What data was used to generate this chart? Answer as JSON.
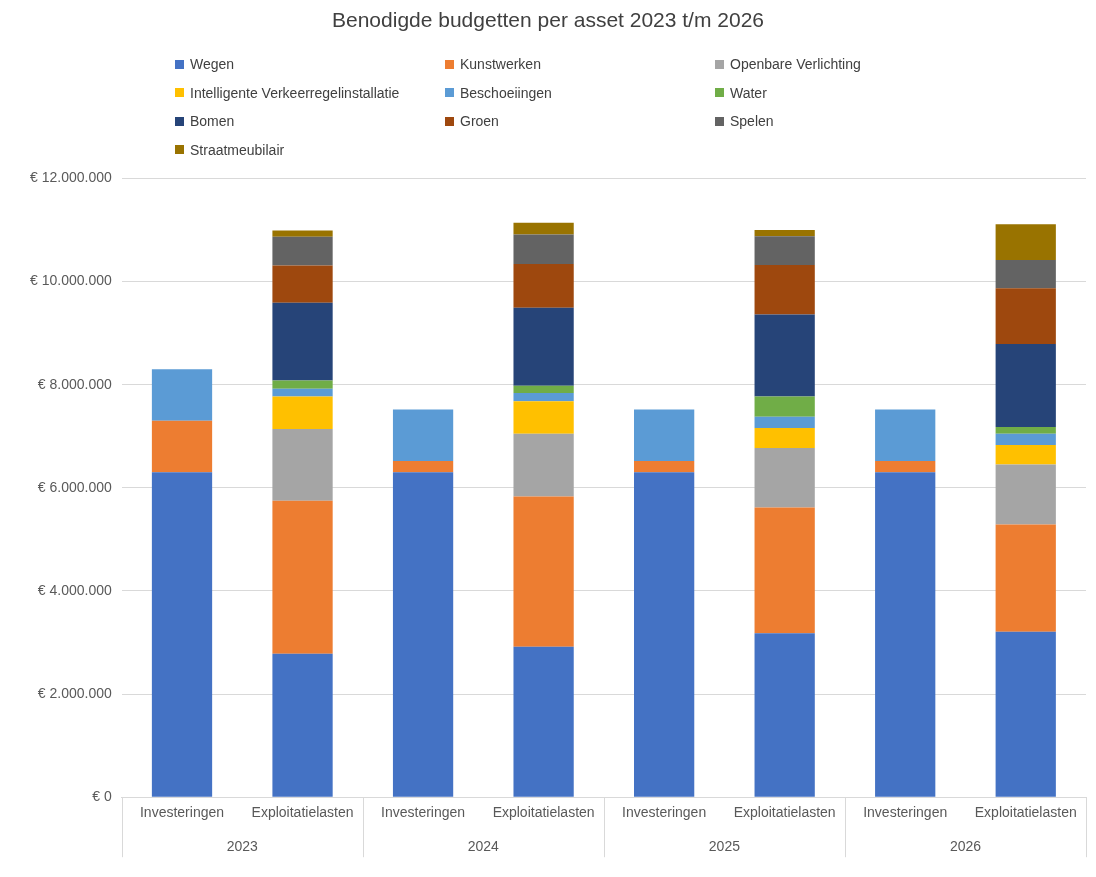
{
  "chart_data": {
    "type": "bar",
    "title": "Benodigde budgetten per asset 2023 t/m 2026",
    "stacked": true,
    "grid": "y",
    "legend": "top",
    "categories": [
      "Investeringen",
      "Exploitatielasten",
      "Investeringen",
      "Exploitatielasten",
      "Investeringen",
      "Exploitatielasten",
      "Investeringen",
      "Exploitatielasten"
    ],
    "annotations": [
      "2023",
      "2024",
      "2025",
      "2026"
    ],
    "ylim": [
      0,
      12000000
    ],
    "yticks": [
      {
        "value": 0,
        "label": "€ 0"
      },
      {
        "value": 2000000,
        "label": "€ 2.000.000"
      },
      {
        "value": 4000000,
        "label": "€ 4.000.000"
      },
      {
        "value": 6000000,
        "label": "€ 6.000.000"
      },
      {
        "value": 8000000,
        "label": "€ 8.000.000"
      },
      {
        "value": 10000000,
        "label": "€ 10.000.000"
      },
      {
        "value": 12000000,
        "label": "€ 12.000.000"
      }
    ],
    "series": [
      {
        "name": "Wegen",
        "color": "#4472c4",
        "values": [
          6300000,
          2780000,
          6300000,
          2920000,
          6300000,
          3180000,
          6300000,
          3210000
        ]
      },
      {
        "name": "Kunstwerken",
        "color": "#ed7d31",
        "values": [
          1000000,
          2970000,
          220000,
          2910000,
          220000,
          2440000,
          220000,
          2080000
        ]
      },
      {
        "name": "Openbare Verlichting",
        "color": "#a5a5a5",
        "values": [
          null,
          1390000,
          null,
          1220000,
          null,
          1150000,
          null,
          1160000
        ]
      },
      {
        "name": "Intelligente Verkeerregelinstallatie",
        "color": "#ffc000",
        "values": [
          null,
          630000,
          null,
          630000,
          null,
          390000,
          null,
          380000
        ]
      },
      {
        "name": "Beschoeiingen",
        "color": "#5b9bd5",
        "values": [
          1000000,
          150000,
          1000000,
          160000,
          1000000,
          220000,
          1000000,
          220000
        ]
      },
      {
        "name": "Water",
        "color": "#70ad47",
        "values": [
          null,
          160000,
          null,
          140000,
          null,
          390000,
          null,
          130000
        ]
      },
      {
        "name": "Bomen",
        "color": "#264478",
        "values": [
          null,
          1510000,
          null,
          1510000,
          null,
          1590000,
          null,
          1610000
        ]
      },
      {
        "name": "Groen",
        "color": "#9e480e",
        "values": [
          null,
          720000,
          null,
          850000,
          null,
          960000,
          null,
          1080000
        ]
      },
      {
        "name": "Spelen",
        "color": "#636363",
        "values": [
          null,
          560000,
          null,
          570000,
          null,
          560000,
          null,
          550000
        ]
      },
      {
        "name": "Straatmeubilair",
        "color": "#997300",
        "values": [
          null,
          120000,
          null,
          230000,
          null,
          120000,
          null,
          690000
        ]
      }
    ]
  }
}
